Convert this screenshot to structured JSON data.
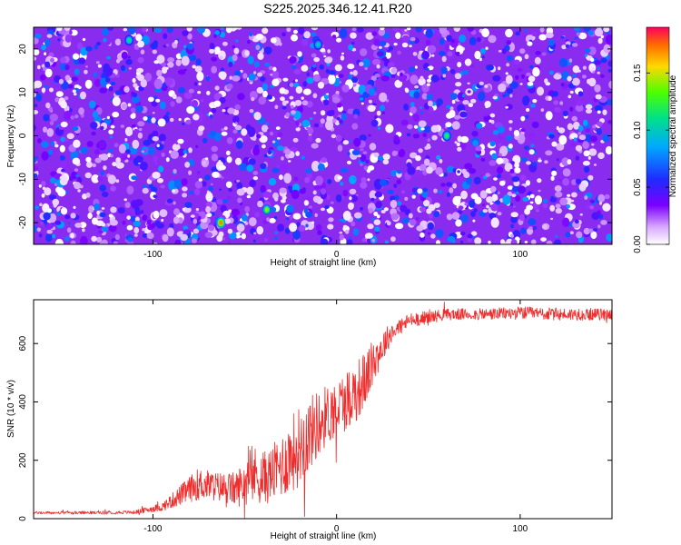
{
  "chart_data": [
    {
      "type": "heatmap",
      "title": "S225.2025.346.12.41.R20",
      "xlabel": "Height of straight line (km)",
      "ylabel": "Frequency (Hz)",
      "xlim": [
        -165,
        150
      ],
      "ylim": [
        -25,
        25
      ],
      "xticks": [
        -100,
        0,
        100
      ],
      "yticks": [
        -20,
        -10,
        0,
        10,
        20
      ],
      "colorbar": {
        "label": "Normalized spectral amplitude",
        "range": [
          0,
          0.19
        ],
        "ticks": [
          "0.00",
          "0.05",
          "0.10",
          "0.15"
        ],
        "tick_values": [
          0,
          0.05,
          0.1,
          0.15
        ]
      },
      "seed_peaks": [
        {
          "x": -63,
          "y": -20,
          "v": 0.17
        },
        {
          "x": -38,
          "y": -17,
          "v": 0.14
        },
        {
          "x": 60,
          "y": 0,
          "v": 0.12
        },
        {
          "x": -113,
          "y": 22,
          "v": 0.11
        },
        {
          "x": -10,
          "y": 21,
          "v": 0.1
        }
      ]
    },
    {
      "type": "line",
      "xlabel": "Height of straight line (km)",
      "ylabel": "SNR (10 * v/v)",
      "xlim": [
        -165,
        150
      ],
      "ylim": [
        0,
        750
      ],
      "xticks": [
        -100,
        0,
        100
      ],
      "yticks": [
        0,
        200,
        400,
        600
      ],
      "series": [
        {
          "name": "SNR",
          "color": "#ef2b2b",
          "x": [
            -165,
            -140,
            -110,
            -95,
            -85,
            -75,
            -65,
            -55,
            -45,
            -38,
            -30,
            -22,
            -15,
            -8,
            0,
            8,
            15,
            22,
            30,
            40,
            60,
            80,
            100,
            120,
            150
          ],
          "y": [
            20,
            20,
            22,
            40,
            80,
            120,
            110,
            100,
            150,
            140,
            180,
            240,
            290,
            340,
            380,
            420,
            470,
            560,
            640,
            680,
            700,
            700,
            705,
            700,
            700
          ],
          "noise": [
            5,
            5,
            6,
            15,
            35,
            55,
            50,
            60,
            100,
            90,
            110,
            140,
            130,
            110,
            100,
            110,
            100,
            70,
            35,
            25,
            20,
            20,
            22,
            22,
            20
          ]
        }
      ]
    }
  ]
}
